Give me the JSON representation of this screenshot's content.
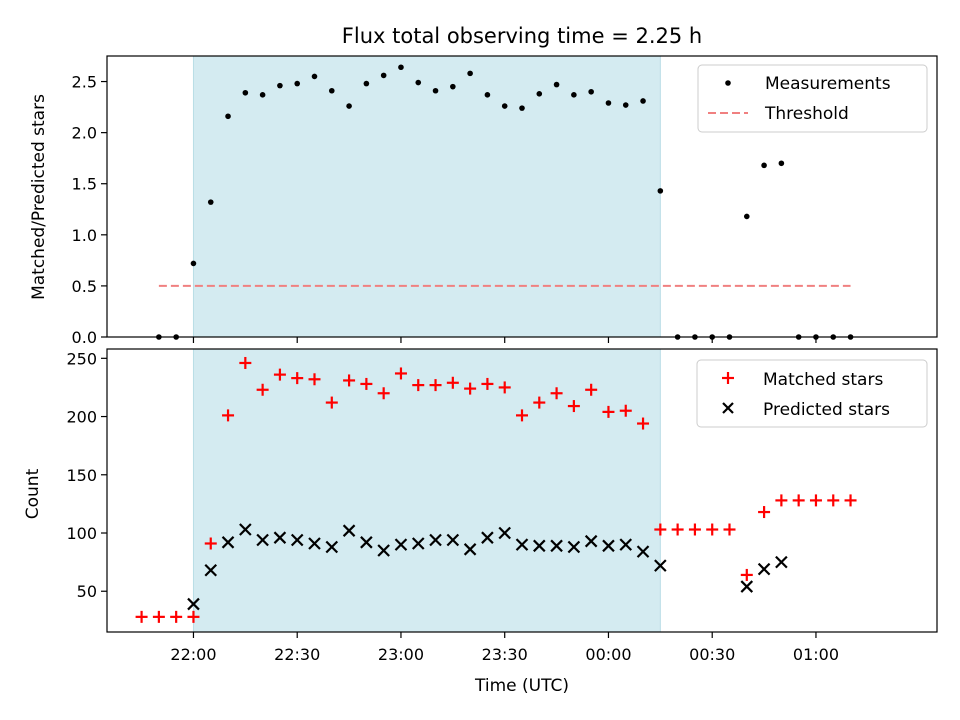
{
  "chart_data": [
    {
      "type": "scatter",
      "title": "Flux total observing time = 2.25 h",
      "ylabel": "Matched/Predicted stars",
      "xlabel": "",
      "ylim": [
        0,
        2.75
      ],
      "xlim": [
        "21:35",
        "01:35"
      ],
      "yticks": [
        "0.0",
        "0.5",
        "1.0",
        "1.5",
        "2.0",
        "2.5"
      ],
      "shaded_interval": [
        "22:00",
        "00:15"
      ],
      "shade_color": "#d4ebf1",
      "legend_position": "top-right",
      "grid": false,
      "threshold": {
        "name": "Threshold",
        "value": 0.5,
        "x_range": [
          "21:50",
          "01:10"
        ],
        "color": "#f08080"
      },
      "series": [
        {
          "name": "Measurements",
          "color": "#000000",
          "x": [
            "21:50",
            "21:55",
            "22:00",
            "22:05",
            "22:10",
            "22:15",
            "22:20",
            "22:25",
            "22:30",
            "22:35",
            "22:40",
            "22:45",
            "22:50",
            "22:55",
            "23:00",
            "23:05",
            "23:10",
            "23:15",
            "23:20",
            "23:25",
            "23:30",
            "23:35",
            "23:40",
            "23:45",
            "23:50",
            "23:55",
            "00:00",
            "00:05",
            "00:10",
            "00:15",
            "00:20",
            "00:25",
            "00:30",
            "00:35",
            "00:40",
            "00:45",
            "00:50",
            "00:55",
            "01:00",
            "01:05",
            "01:10"
          ],
          "y": [
            0,
            0,
            0.72,
            1.32,
            2.16,
            2.39,
            2.37,
            2.46,
            2.48,
            2.55,
            2.41,
            2.26,
            2.48,
            2.56,
            2.64,
            2.49,
            2.41,
            2.45,
            2.58,
            2.37,
            2.26,
            2.24,
            2.38,
            2.47,
            2.37,
            2.4,
            2.29,
            2.27,
            2.31,
            1.43,
            0,
            0,
            0,
            0,
            1.18,
            1.68,
            1.7,
            0,
            0,
            0,
            0
          ]
        }
      ]
    },
    {
      "type": "scatter",
      "title": "",
      "ylabel": "Count",
      "xlabel": "Time (UTC)",
      "ylim": [
        15,
        258
      ],
      "xlim": [
        "21:35",
        "01:35"
      ],
      "yticks": [
        "50",
        "100",
        "150",
        "200",
        "250"
      ],
      "xticks": [
        "22:00",
        "22:30",
        "23:00",
        "23:30",
        "00:00",
        "00:30",
        "01:00"
      ],
      "shaded_interval": [
        "22:00",
        "00:15"
      ],
      "legend_position": "top-right",
      "grid": false,
      "series": [
        {
          "name": "Matched stars",
          "marker": "plus",
          "color": "#ff0000",
          "x": [
            "21:45",
            "21:50",
            "21:55",
            "22:00",
            "22:05",
            "22:10",
            "22:15",
            "22:20",
            "22:25",
            "22:30",
            "22:35",
            "22:40",
            "22:45",
            "22:50",
            "22:55",
            "23:00",
            "23:05",
            "23:10",
            "23:15",
            "23:20",
            "23:25",
            "23:30",
            "23:35",
            "23:40",
            "23:45",
            "23:50",
            "23:55",
            "00:00",
            "00:05",
            "00:10",
            "00:15",
            "00:20",
            "00:25",
            "00:30",
            "00:35",
            "00:40",
            "00:45",
            "00:50",
            "00:55",
            "01:00",
            "01:05",
            "01:10"
          ],
          "y": [
            28,
            28,
            28,
            28,
            91,
            201,
            246,
            223,
            236,
            233,
            232,
            212,
            231,
            228,
            220,
            237,
            227,
            227,
            229,
            224,
            228,
            225,
            201,
            212,
            220,
            209,
            223,
            204,
            205,
            194,
            103,
            103,
            103,
            103,
            103,
            64,
            118,
            128,
            128,
            128,
            128,
            128
          ]
        },
        {
          "name": "Predicted stars",
          "marker": "x",
          "color": "#000000",
          "x": [
            "22:00",
            "22:05",
            "22:10",
            "22:15",
            "22:20",
            "22:25",
            "22:30",
            "22:35",
            "22:40",
            "22:45",
            "22:50",
            "22:55",
            "23:00",
            "23:05",
            "23:10",
            "23:15",
            "23:20",
            "23:25",
            "23:30",
            "23:35",
            "23:40",
            "23:45",
            "23:50",
            "23:55",
            "00:00",
            "00:05",
            "00:10",
            "00:15",
            "00:40",
            "00:45",
            "00:50"
          ],
          "y": [
            39,
            68,
            92,
            103,
            94,
            96,
            94,
            91,
            88,
            102,
            92,
            85,
            90,
            91,
            94,
            94,
            86,
            96,
            100,
            90,
            89,
            89,
            88,
            93,
            89,
            90,
            84,
            72,
            54,
            69,
            75
          ]
        }
      ]
    }
  ]
}
